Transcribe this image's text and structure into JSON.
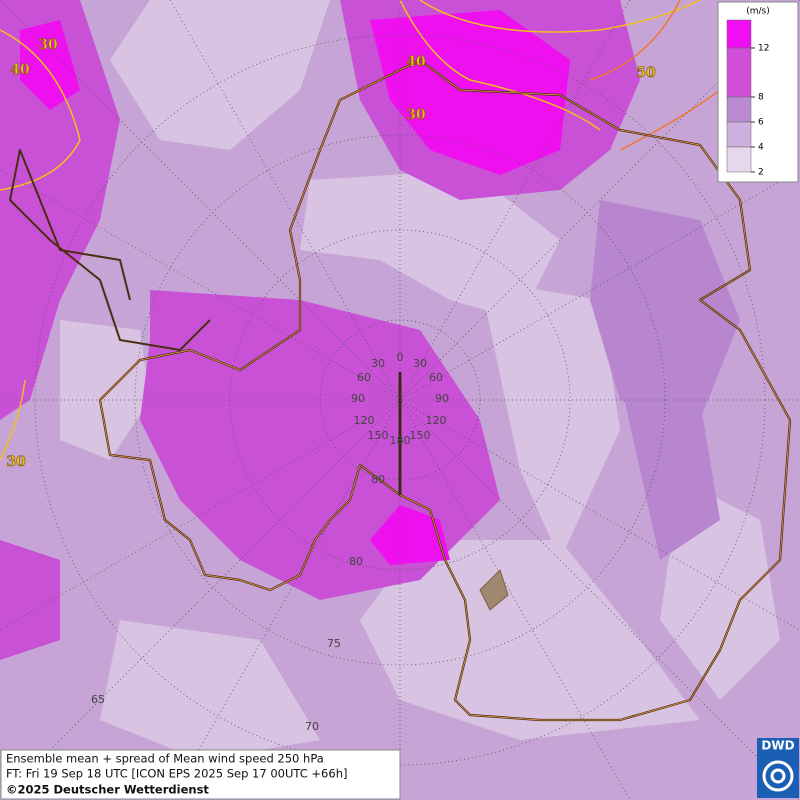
{
  "legend": {
    "unit": "(m/s)",
    "ticks": [
      12,
      8,
      6,
      4,
      2
    ],
    "colors": [
      "#f00ef2",
      "#cf4fd9",
      "#bb8ad3",
      "#cdb0dd",
      "#e6d7ec"
    ]
  },
  "contour_labels": [
    30,
    40,
    40,
    30,
    50,
    30
  ],
  "longitude_labels": [
    "0",
    "30",
    "30",
    "60",
    "60",
    "90",
    "90",
    "120",
    "120",
    "150",
    "150",
    "180"
  ],
  "latitude_labels": [
    80,
    80,
    75,
    70,
    65
  ],
  "footer": {
    "lines": [
      "Ensemble mean + spread of Mean wind speed 250 hPa",
      "FT: Fri 19 Sep 18 UTC [ICON EPS 2025 Sep 17 00UTC +66h]",
      "©2025 Deutscher Wetterdienst"
    ]
  },
  "logo": "DWD"
}
